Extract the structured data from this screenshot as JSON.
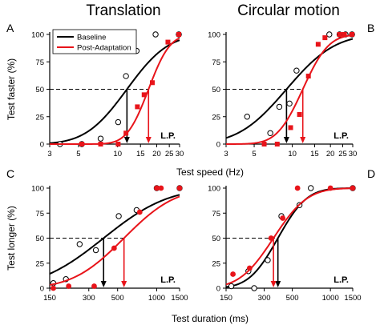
{
  "colors": {
    "baseline": "#000000",
    "post": "#e8141a",
    "axis": "#000000"
  },
  "figure": {
    "column_titles": [
      "Translation",
      "Circular motion"
    ],
    "top_xlabel": "Test speed (Hz)",
    "bottom_xlabel": "Test duration (ms)",
    "legend": {
      "baseline": "Baseline",
      "post": "Post-Adaptation"
    }
  },
  "chart_data": [
    {
      "panel": "A",
      "type": "scatter",
      "ylabel": "Test faster (%)",
      "xscale": "log",
      "xlim": [
        3,
        30
      ],
      "xticks": [
        3,
        5,
        10,
        15,
        20,
        25,
        30
      ],
      "ylim": [
        0,
        100
      ],
      "yticks": [
        0,
        25,
        50,
        75,
        100
      ],
      "reference_line_y": 50,
      "annotation": "L.P.",
      "legend_position": "top-left",
      "series": [
        {
          "name": "Baseline",
          "marker": "open-circle",
          "x": [
            3.6,
            5.3,
            7.4,
            10.1,
            11.6,
            14.0,
            19.6,
            29.6
          ],
          "y": [
            0,
            0,
            5,
            20,
            62,
            85,
            100,
            100
          ],
          "fit": {
            "mu": 11.8,
            "sigma": 0.25
          },
          "pse": 11.8
        },
        {
          "name": "Post-Adaptation",
          "marker": "filled-square",
          "x": [
            5.3,
            7.4,
            10.1,
            11.6,
            14.2,
            16.0,
            18.5,
            24.4,
            29.6
          ],
          "y": [
            0,
            0,
            0,
            10,
            34,
            45,
            56,
            93,
            100
          ],
          "fit": {
            "mu": 17.3,
            "sigma": 0.13
          },
          "pse": 17.3
        }
      ]
    },
    {
      "panel": "B",
      "type": "scatter",
      "ylabel": "",
      "xscale": "log",
      "xlim": [
        3,
        30
      ],
      "xticks": [
        3,
        5,
        10,
        15,
        20,
        25,
        30
      ],
      "ylim": [
        0,
        100
      ],
      "yticks": [
        0,
        25,
        50,
        75,
        100
      ],
      "reference_line_y": 50,
      "annotation": "L.P.",
      "series": [
        {
          "name": "Baseline",
          "marker": "open-circle",
          "x": [
            4.4,
            6.7,
            7.9,
            9.5,
            10.8,
            19.6,
            23.6,
            26.3,
            29.6
          ],
          "y": [
            25,
            10,
            34,
            37,
            67,
            100,
            100,
            100,
            100
          ],
          "fit": {
            "mu": 9.0,
            "sigma": 0.3
          },
          "pse": 9.0
        },
        {
          "name": "Post-Adaptation",
          "marker": "filled-square",
          "x": [
            6.0,
            7.6,
            9.7,
            11.4,
            13.4,
            16.0,
            18.1,
            23.6,
            25.8,
            29.6
          ],
          "y": [
            0,
            0,
            15,
            27,
            62,
            91,
            97,
            100,
            100,
            100
          ],
          "fit": {
            "mu": 12.1,
            "sigma": 0.16
          },
          "pse": 12.1
        }
      ]
    },
    {
      "panel": "C",
      "type": "scatter",
      "ylabel": "Test longer (%)",
      "xscale": "log",
      "xlim": [
        150,
        1500
      ],
      "xticks": [
        150,
        300,
        500,
        1000,
        1500
      ],
      "ylim": [
        0,
        100
      ],
      "yticks": [
        0,
        25,
        50,
        75,
        100
      ],
      "reference_line_y": 50,
      "annotation": "L.P.",
      "series": [
        {
          "name": "Baseline",
          "marker": "open-circle",
          "x": [
            160,
            200,
            255,
            340,
            510,
            700,
            1000,
            1500
          ],
          "y": [
            5,
            9,
            44,
            38,
            72,
            78,
            100,
            100
          ],
          "fit": {
            "mu": 390,
            "sigma": 0.39
          },
          "pse": 390
        },
        {
          "name": "Post-Adaptation",
          "marker": "filled-circle",
          "x": [
            160,
            210,
            330,
            470,
            740,
            1000,
            1080,
            1500
          ],
          "y": [
            0,
            2,
            2,
            40,
            76,
            100,
            100,
            100
          ],
          "fit": {
            "mu": 560,
            "sigma": 0.31
          },
          "pse": 560
        }
      ]
    },
    {
      "panel": "D",
      "type": "scatter",
      "ylabel": "",
      "xscale": "log",
      "xlim": [
        150,
        1500
      ],
      "xticks": [
        150,
        300,
        500,
        1000,
        1500
      ],
      "ylim": [
        0,
        100
      ],
      "yticks": [
        0,
        25,
        50,
        75,
        100
      ],
      "reference_line_y": 50,
      "annotation": "L.P.",
      "series": [
        {
          "name": "Baseline",
          "marker": "open-circle",
          "x": [
            165,
            225,
            250,
            320,
            410,
            570,
            700,
            1500
          ],
          "y": [
            2,
            17,
            0,
            28,
            72,
            83,
            100,
            100
          ],
          "fit": {
            "mu": 385,
            "sigma": 0.18
          },
          "pse": 385
        },
        {
          "name": "Post-Adaptation",
          "marker": "filled-circle",
          "x": [
            170,
            230,
            340,
            420,
            550,
            1000,
            1500
          ],
          "y": [
            14,
            20,
            50,
            70,
            100,
            100,
            100
          ],
          "fit": {
            "mu": 355,
            "sigma": 0.21
          },
          "pse": 355
        }
      ]
    }
  ]
}
